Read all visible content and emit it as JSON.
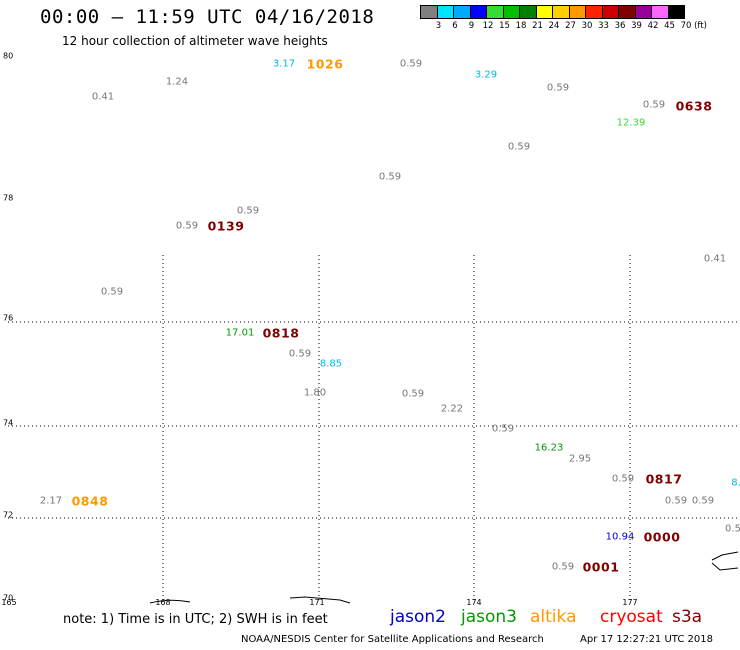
{
  "title": "00:00 – 11:59 UTC 04/16/2018",
  "subtitle": "12 hour collection of altimeter wave heights",
  "colorbar": {
    "unit": "(ft)",
    "ticks": [
      "3",
      "6",
      "9",
      "12",
      "15",
      "18",
      "21",
      "24",
      "27",
      "30",
      "33",
      "36",
      "39",
      "42",
      "45",
      "70"
    ],
    "colors": [
      "#808080",
      "#00e5ff",
      "#00aaff",
      "#0000ff",
      "#33dd33",
      "#00c000",
      "#008000",
      "#ffff00",
      "#ffd000",
      "#ff9900",
      "#ff2200",
      "#cc0000",
      "#800000",
      "#990099",
      "#ff66ff",
      "#000000"
    ]
  },
  "axes": {
    "lat_labels": [
      "80",
      "78",
      "76",
      "74",
      "72",
      "70"
    ],
    "lon_labels": [
      "165",
      "168",
      "171",
      "174",
      "177"
    ]
  },
  "satellite_colors": {
    "jason2": "#0000cc",
    "jason3": "#009900",
    "altika": "#ff9900",
    "cryosat": "#ff0000",
    "s3a": "#800000",
    "gray": "#777777",
    "cyan": "#00b8e6",
    "light_green": "#33dd33"
  },
  "observations": [
    {
      "text": "3.17",
      "color": "cyan"
    },
    {
      "text": "0.41",
      "color": "gray"
    },
    {
      "text": "1.24",
      "color": "gray"
    },
    {
      "text": "0.59",
      "color": "gray"
    },
    {
      "text": "3.29",
      "color": "cyan"
    },
    {
      "text": "0.59",
      "color": "gray"
    },
    {
      "text": "0.59",
      "color": "gray"
    },
    {
      "text": "12.39",
      "color": "light_green"
    },
    {
      "text": "0.59",
      "color": "gray"
    },
    {
      "text": "0.59",
      "color": "gray"
    },
    {
      "text": "0.59",
      "color": "gray"
    },
    {
      "text": "0.59",
      "color": "gray"
    },
    {
      "text": "0.41",
      "color": "gray"
    },
    {
      "text": "0.59",
      "color": "gray"
    },
    {
      "text": "17.01",
      "color": "jason3"
    },
    {
      "text": "0.59",
      "color": "gray"
    },
    {
      "text": "8.85",
      "color": "cyan"
    },
    {
      "text": "1.80",
      "color": "gray"
    },
    {
      "text": "0.59",
      "color": "gray"
    },
    {
      "text": "2.22",
      "color": "gray"
    },
    {
      "text": "0.59",
      "color": "gray"
    },
    {
      "text": "16.23",
      "color": "jason3"
    },
    {
      "text": "2.95",
      "color": "gray"
    },
    {
      "text": "0.59",
      "color": "gray"
    },
    {
      "text": "0.59",
      "color": "gray"
    },
    {
      "text": "0.59",
      "color": "gray"
    },
    {
      "text": "8.",
      "color": "cyan"
    },
    {
      "text": "2.17",
      "color": "gray"
    },
    {
      "text": "10.94",
      "color": "jason2"
    },
    {
      "text": "0.59",
      "color": "gray"
    },
    {
      "text": "0.5",
      "color": "gray"
    }
  ],
  "pass_times": [
    {
      "text": "1026",
      "color": "altika"
    },
    {
      "text": "0638",
      "color": "s3a"
    },
    {
      "text": "0139",
      "color": "s3a"
    },
    {
      "text": "0818",
      "color": "s3a"
    },
    {
      "text": "0817",
      "color": "s3a"
    },
    {
      "text": "0848",
      "color": "altika"
    },
    {
      "text": "0000",
      "color": "s3a"
    },
    {
      "text": "0001",
      "color": "s3a"
    }
  ],
  "note": "note:  1) Time is in UTC;  2) SWH is in feet",
  "legend": {
    "jason2": "jason2",
    "jason3": "jason3",
    "altika": "altika",
    "cryosat": "cryosat",
    "s3a": "s3a"
  },
  "footer": {
    "credit": "NOAA/NESDIS Center for Satellite Applications and Research",
    "timestamp": "Apr 17 12:27:21 UTC 2018"
  }
}
